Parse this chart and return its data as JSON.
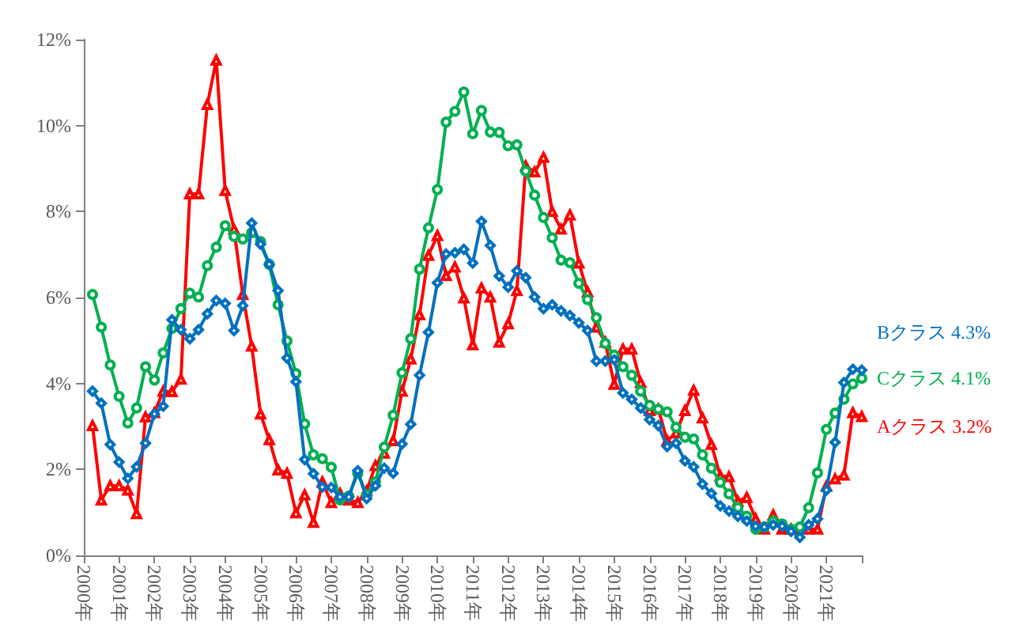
{
  "chart_data": {
    "type": "line",
    "x": [
      "2000-03-31",
      "2000-06-30",
      "2000-09-30",
      "2000-12-31",
      "2001-03-31",
      "2001-06-30",
      "2001-09-30",
      "2001-12-31",
      "2002-03-31",
      "2002-06-30",
      "2002-09-30",
      "2002-12-31",
      "2003-03-31",
      "2003-06-30",
      "2003-09-30",
      "2003-12-31",
      "2004-03-31",
      "2004-06-30",
      "2004-09-30",
      "2004-12-31",
      "2005-03-31",
      "2005-06-30",
      "2005-09-30",
      "2005-12-31",
      "2006-03-31",
      "2006-06-30",
      "2006-09-30",
      "2006-12-31",
      "2007-03-31",
      "2007-06-30",
      "2007-09-30",
      "2007-12-31",
      "2008-03-31",
      "2008-06-30",
      "2008-09-30",
      "2008-12-31",
      "2009-03-31",
      "2009-06-30",
      "2009-09-30",
      "2009-12-31",
      "2010-03-31",
      "2010-06-30",
      "2010-09-30",
      "2010-12-31",
      "2011-03-31",
      "2011-06-30",
      "2011-09-30",
      "2011-12-31",
      "2012-03-31",
      "2012-06-30",
      "2012-09-30",
      "2012-12-31",
      "2013-03-31",
      "2013-06-30",
      "2013-09-30",
      "2013-12-31",
      "2014-03-31",
      "2014-06-30",
      "2014-09-30",
      "2014-12-31",
      "2015-03-31",
      "2015-06-30",
      "2015-09-30",
      "2015-12-31",
      "2016-03-31",
      "2016-06-30",
      "2016-09-30",
      "2016-12-31",
      "2017-03-31",
      "2017-06-30",
      "2017-09-30",
      "2017-12-31",
      "2018-03-31",
      "2018-06-30",
      "2018-09-30",
      "2018-12-31",
      "2019-03-31",
      "2019-06-30",
      "2019-09-30",
      "2019-12-31",
      "2020-03-31",
      "2020-06-30",
      "2020-09-30",
      "2020-12-31",
      "2021-03-31",
      "2021-06-30",
      "2021-09-30",
      "2021-12-31"
    ],
    "series": [
      {
        "name": "Bクラス",
        "color": "#0070c0",
        "marker": "diamond",
        "value_labels": [
          null,
          null,
          null,
          null,
          null,
          null,
          null,
          null,
          null,
          null,
          null,
          null,
          null,
          null,
          null,
          null,
          null,
          null,
          null,
          null,
          null,
          null,
          null,
          null,
          null,
          null,
          null,
          null,
          null,
          null,
          null,
          null,
          null,
          null,
          null,
          null,
          null,
          null,
          null,
          null,
          null,
          null,
          null,
          null,
          null,
          null,
          null,
          null,
          null,
          null,
          null,
          null,
          null,
          null,
          null,
          null,
          null,
          null,
          null,
          null,
          null,
          null,
          null,
          null,
          null,
          null,
          null,
          null,
          null,
          null,
          null,
          null,
          null,
          null,
          null,
          null,
          null,
          null,
          null,
          null,
          null,
          null,
          null,
          null,
          null,
          null,
          null,
          "4.3%"
        ],
        "values": [
          3.82,
          3.54,
          2.58,
          2.17,
          1.79,
          2.06,
          2.61,
          3.29,
          3.47,
          5.48,
          5.25,
          5.04,
          5.25,
          5.62,
          5.93,
          5.86,
          5.23,
          5.81,
          7.73,
          7.24,
          6.77,
          6.16,
          4.59,
          4.04,
          2.23,
          1.9,
          1.59,
          1.58,
          1.36,
          1.36,
          1.97,
          1.32,
          1.62,
          2.03,
          1.91,
          2.59,
          3.05,
          4.19,
          5.19,
          6.34,
          7.01,
          7.04,
          7.12,
          6.8,
          7.77,
          7.21,
          6.5,
          6.24,
          6.62,
          6.46,
          6.01,
          5.74,
          5.83,
          5.69,
          5.58,
          5.41,
          5.23,
          4.52,
          4.52,
          4.55,
          3.78,
          3.63,
          3.43,
          3.16,
          3.02,
          2.53,
          2.61,
          2.2,
          2.06,
          1.66,
          1.44,
          1.15,
          1.03,
          0.91,
          0.8,
          0.68,
          0.66,
          0.71,
          0.68,
          0.56,
          0.42,
          0.71,
          0.85,
          1.52,
          2.63,
          4.02,
          4.33,
          4.31
        ]
      },
      {
        "name": "Cクラス",
        "color": "#00b050",
        "marker": "circle",
        "value_labels": [
          null,
          null,
          null,
          null,
          null,
          null,
          null,
          null,
          null,
          null,
          null,
          null,
          null,
          null,
          null,
          null,
          null,
          null,
          null,
          null,
          null,
          null,
          null,
          null,
          null,
          null,
          null,
          null,
          null,
          null,
          null,
          null,
          null,
          null,
          null,
          null,
          null,
          null,
          null,
          null,
          null,
          null,
          null,
          null,
          null,
          null,
          null,
          null,
          null,
          null,
          null,
          null,
          null,
          null,
          null,
          null,
          null,
          null,
          null,
          null,
          null,
          null,
          null,
          null,
          null,
          null,
          null,
          null,
          null,
          null,
          null,
          null,
          null,
          null,
          null,
          null,
          null,
          null,
          null,
          null,
          null,
          null,
          null,
          null,
          null,
          null,
          null,
          "4.1%"
        ],
        "values": [
          6.07,
          5.31,
          4.43,
          3.7,
          3.08,
          3.43,
          4.39,
          4.08,
          4.71,
          5.28,
          5.74,
          6.1,
          6.01,
          6.74,
          7.17,
          7.67,
          7.42,
          7.36,
          7.51,
          7.3,
          6.77,
          5.83,
          4.99,
          4.23,
          3.06,
          2.34,
          2.25,
          2.05,
          1.29,
          1.38,
          1.91,
          1.41,
          1.71,
          2.52,
          3.26,
          4.25,
          5.04,
          6.66,
          7.62,
          8.51,
          10.08,
          10.33,
          10.78,
          9.81,
          10.35,
          9.85,
          9.84,
          9.53,
          9.55,
          8.94,
          8.38,
          7.86,
          7.39,
          6.87,
          6.81,
          6.33,
          5.95,
          5.53,
          4.93,
          4.66,
          4.39,
          4.19,
          3.82,
          3.49,
          3.4,
          3.34,
          2.98,
          2.75,
          2.71,
          2.34,
          2.03,
          1.7,
          1.43,
          1.11,
          0.91,
          0.61,
          0.66,
          0.8,
          0.73,
          0.61,
          0.66,
          1.11,
          1.92,
          2.93,
          3.31,
          3.63,
          3.99,
          4.12
        ]
      },
      {
        "name": "Aクラス",
        "color": "#ff0000",
        "marker": "triangle",
        "value_labels": [
          null,
          null,
          null,
          null,
          null,
          null,
          null,
          null,
          null,
          null,
          null,
          null,
          null,
          null,
          null,
          null,
          null,
          null,
          null,
          null,
          null,
          null,
          null,
          null,
          null,
          null,
          null,
          null,
          null,
          null,
          null,
          null,
          null,
          null,
          null,
          null,
          null,
          null,
          null,
          null,
          null,
          null,
          null,
          null,
          null,
          null,
          null,
          null,
          null,
          null,
          null,
          null,
          null,
          null,
          null,
          null,
          null,
          null,
          null,
          null,
          null,
          null,
          null,
          null,
          null,
          null,
          null,
          null,
          null,
          null,
          null,
          null,
          null,
          null,
          null,
          null,
          null,
          null,
          null,
          null,
          null,
          null,
          null,
          null,
          null,
          null,
          null,
          "3.2%"
        ],
        "values": [
          3.02,
          1.29,
          1.62,
          1.62,
          1.52,
          0.97,
          3.22,
          3.32,
          3.82,
          3.81,
          4.1,
          8.41,
          8.41,
          10.49,
          11.52,
          8.49,
          7.59,
          6.07,
          4.87,
          3.29,
          2.69,
          1.99,
          1.91,
          0.99,
          1.41,
          0.77,
          1.71,
          1.23,
          1.44,
          1.29,
          1.23,
          1.5,
          2.09,
          2.38,
          2.67,
          3.82,
          4.57,
          5.6,
          6.98,
          7.44,
          6.51,
          6.71,
          5.99,
          4.9,
          6.22,
          6.01,
          4.96,
          5.39,
          6.16,
          9.06,
          8.92,
          9.26,
          8,
          7.59,
          7.92,
          6.8,
          6.13,
          5.31,
          4.96,
          3.98,
          4.8,
          4.8,
          4.02,
          3.37,
          3.4,
          2.67,
          2.85,
          3.37,
          3.84,
          3.2,
          2.58,
          1.85,
          1.83,
          1.26,
          1.35,
          0.85,
          0.61,
          0.94,
          0.61,
          0.61,
          0.61,
          0.61,
          0.61,
          1.61,
          1.78,
          1.87,
          3.32,
          3.23
        ]
      }
    ],
    "xlim": [
      "2000",
      "2022"
    ],
    "xticks": [
      {
        "value": "2000",
        "label": "2000年"
      },
      {
        "value": "2001",
        "label": "2001年"
      },
      {
        "value": "2002",
        "label": "2002年"
      },
      {
        "value": "2003",
        "label": "2003年"
      },
      {
        "value": "2004",
        "label": "2004年"
      },
      {
        "value": "2005",
        "label": "2005年"
      },
      {
        "value": "2006",
        "label": "2006年"
      },
      {
        "value": "2007",
        "label": "2007年"
      },
      {
        "value": "2008",
        "label": "2008年"
      },
      {
        "value": "2009",
        "label": "2009年"
      },
      {
        "value": "2010",
        "label": "2010年"
      },
      {
        "value": "2011",
        "label": "2011年"
      },
      {
        "value": "2012",
        "label": "2012年"
      },
      {
        "value": "2013",
        "label": "2013年"
      },
      {
        "value": "2014",
        "label": "2014年"
      },
      {
        "value": "2015",
        "label": "2015年"
      },
      {
        "value": "2016",
        "label": "2016年"
      },
      {
        "value": "2017",
        "label": "2017年"
      },
      {
        "value": "2018",
        "label": "2018年"
      },
      {
        "value": "2019",
        "label": "2019年"
      },
      {
        "value": "2020",
        "label": "2020年"
      },
      {
        "value": "2021",
        "label": "2021年"
      },
      {
        "value": "2022",
        "label": null
      }
    ],
    "ylim": [
      0,
      12
    ],
    "yticks": [
      {
        "value": 0,
        "label": "0%"
      },
      {
        "value": 2,
        "label": "2%"
      },
      {
        "value": 4,
        "label": "4%"
      },
      {
        "value": 6,
        "label": "6%"
      },
      {
        "value": 8,
        "label": "8%"
      },
      {
        "value": 10,
        "label": "10%"
      },
      {
        "value": 12,
        "label": "12%"
      }
    ],
    "grid": false,
    "legend": false,
    "line_style": "solid"
  }
}
